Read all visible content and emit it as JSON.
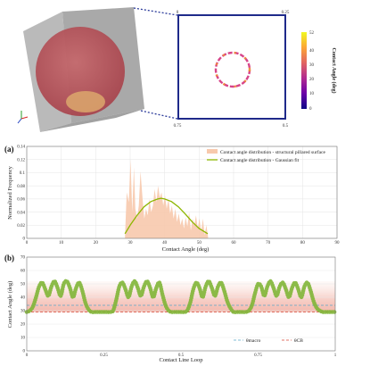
{
  "inset": {
    "corner_labels": [
      "0",
      "0.25",
      "0.75",
      "0.5"
    ],
    "colorbar": {
      "label": "Contact Angle (deg)",
      "ticks": [
        "52",
        "40",
        "30",
        "20",
        "10",
        "0"
      ],
      "max": 52,
      "colors": [
        "#0d0887",
        "#6a00a8",
        "#b12a90",
        "#e16462",
        "#fca636",
        "#f0f921"
      ]
    }
  },
  "chart_data": [
    {
      "panel": "(a)",
      "type": "area",
      "xlabel": "Contact Angle (deg)",
      "ylabel": "Normalized Frequency",
      "xlim": [
        0,
        90
      ],
      "ylim": [
        0,
        0.14
      ],
      "xticks": [
        0,
        10,
        20,
        30,
        40,
        50,
        60,
        70,
        80,
        90
      ],
      "yticks": [
        0,
        0.02,
        0.04,
        0.06,
        0.08,
        0.1,
        0.12,
        0.14
      ],
      "legend": "top-right",
      "series": [
        {
          "name": "Contact angle distribution - structural pillared surface",
          "color": "#f7c9ad",
          "x": [
            28.5,
            29,
            29.6,
            30.1,
            30.6,
            31.1,
            31.5,
            32,
            32.5,
            33,
            33.6,
            34.1,
            34.6,
            35.1,
            35.6,
            36.1,
            36.6,
            37.1,
            37.6,
            38.1,
            38.6,
            39.1,
            39.6,
            40.1,
            40.6,
            41.1,
            41.6,
            42.1,
            42.6,
            43.1,
            43.6,
            44.1,
            44.6,
            45.1,
            45.6,
            46.1,
            46.6,
            47.1,
            47.6,
            48.1,
            48.6,
            49.1,
            49.6,
            50.1,
            50.6,
            51.1,
            51.6,
            52.1,
            52.6
          ],
          "values": [
            0.003,
            0.07,
            0.055,
            0.12,
            0.04,
            0.108,
            0.045,
            0.03,
            0.05,
            0.102,
            0.06,
            0.03,
            0.045,
            0.035,
            0.06,
            0.04,
            0.05,
            0.075,
            0.055,
            0.08,
            0.062,
            0.07,
            0.05,
            0.065,
            0.045,
            0.06,
            0.038,
            0.05,
            0.03,
            0.045,
            0.025,
            0.038,
            0.02,
            0.03,
            0.015,
            0.032,
            0.018,
            0.04,
            0.012,
            0.03,
            0.02,
            0.035,
            0.015,
            0.03,
            0.01,
            0.03,
            0.005,
            0.02,
            0.002
          ]
        },
        {
          "name": "Contact angle distribution - Gaussian fit",
          "color": "#8db600",
          "x": [
            28.5,
            30,
            32,
            34,
            36,
            38,
            39,
            40,
            42,
            44,
            46,
            48,
            50,
            52.5
          ],
          "values": [
            0.007,
            0.02,
            0.035,
            0.048,
            0.056,
            0.06,
            0.061,
            0.06,
            0.056,
            0.048,
            0.037,
            0.025,
            0.015,
            0.007
          ]
        }
      ]
    },
    {
      "panel": "(b)",
      "type": "line",
      "xlabel": "Contact Line Loop",
      "ylabel": "Contact Angle (deg)",
      "xlim": [
        0,
        1
      ],
      "ylim": [
        0,
        70
      ],
      "xticks": [
        0,
        0.25,
        0.5,
        0.75,
        1
      ],
      "xtick_labels": [
        "0",
        "0.25",
        "0.5",
        "0.75",
        "1"
      ],
      "yticks": [
        0,
        10,
        20,
        30,
        40,
        50,
        60,
        70
      ],
      "legend": "bottom-right",
      "series": [
        {
          "name": "",
          "color": "#8cc63f",
          "x": [
            0,
            0.01,
            0.02,
            0.03,
            0.04,
            0.05,
            0.06,
            0.07,
            0.08,
            0.09,
            0.1,
            0.11,
            0.12,
            0.13,
            0.14,
            0.15,
            0.16,
            0.17,
            0.18,
            0.19,
            0.2,
            0.21,
            0.22,
            0.23,
            0.24,
            0.25,
            0.26,
            0.27,
            0.28,
            0.29,
            0.3,
            0.31,
            0.32,
            0.33,
            0.34,
            0.35,
            0.36,
            0.37,
            0.38,
            0.39,
            0.4,
            0.41,
            0.42,
            0.43,
            0.44,
            0.45,
            0.46,
            0.47,
            0.48,
            0.49,
            0.5,
            0.51,
            0.52,
            0.53,
            0.54,
            0.55,
            0.56,
            0.57,
            0.58,
            0.59,
            0.6,
            0.61,
            0.62,
            0.63,
            0.64,
            0.65,
            0.66,
            0.67,
            0.68,
            0.69,
            0.7,
            0.71,
            0.72,
            0.73,
            0.74,
            0.75,
            0.76,
            0.77,
            0.78,
            0.79,
            0.8,
            0.81,
            0.82,
            0.83,
            0.84,
            0.85,
            0.86,
            0.87,
            0.88,
            0.89,
            0.9,
            0.91,
            0.92,
            0.93,
            0.94,
            0.95,
            0.96,
            0.97,
            0.98,
            0.99,
            1
          ],
          "values": [
            29,
            30,
            33,
            40,
            48,
            51,
            46,
            41,
            48,
            52,
            47,
            41,
            50,
            52,
            47,
            40,
            47,
            51,
            45,
            36,
            31,
            29,
            29,
            29,
            29,
            29,
            29,
            29,
            30,
            38,
            48,
            51,
            46,
            40,
            48,
            52,
            47,
            41,
            48,
            52,
            47,
            40,
            47,
            51,
            42,
            34,
            30,
            29,
            29,
            29,
            29,
            29,
            30,
            36,
            46,
            51,
            47,
            40,
            48,
            52,
            47,
            41,
            48,
            51,
            45,
            37,
            32,
            29,
            29,
            29,
            29,
            29,
            30,
            34,
            43,
            50,
            48,
            41,
            48,
            52,
            47,
            41,
            48,
            51,
            46,
            40,
            47,
            51,
            46,
            40,
            48,
            51,
            45,
            37,
            32,
            30,
            29,
            29,
            29,
            29,
            29
          ]
        }
      ],
      "reference_lines": [
        {
          "name": "θmacro",
          "value": 34,
          "color": "#5aa6c8",
          "style": "dashed"
        },
        {
          "name": "θCB",
          "value": 29,
          "color": "#d94a3a",
          "style": "dashed"
        }
      ],
      "band": {
        "from": 29,
        "to": 52,
        "color": "#f6c9c0"
      }
    }
  ]
}
